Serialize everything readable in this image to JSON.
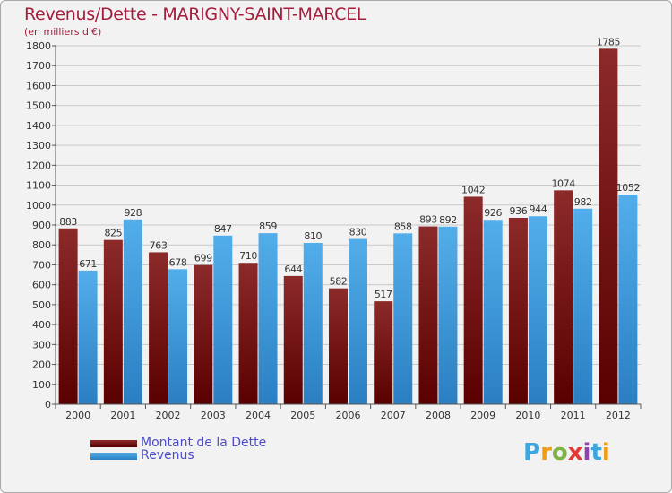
{
  "title": "Revenus/Dette - MARIGNY-SAINT-MARCEL",
  "subtitle": "(en milliers d'€)",
  "chart_data": {
    "type": "bar",
    "categories": [
      "2000",
      "2001",
      "2002",
      "2003",
      "2004",
      "2005",
      "2006",
      "2007",
      "2008",
      "2009",
      "2010",
      "2011",
      "2012"
    ],
    "series": [
      {
        "name": "Montant de la Dette",
        "values": [
          883,
          825,
          763,
          699,
          710,
          644,
          582,
          517,
          893,
          1042,
          936,
          1074,
          1785
        ],
        "color": "#7a1e1e"
      },
      {
        "name": "Revenus",
        "values": [
          671,
          928,
          678,
          847,
          859,
          810,
          830,
          858,
          892,
          926,
          944,
          982,
          1052
        ],
        "color": "#3d9be0"
      }
    ],
    "ylim": [
      0,
      1800
    ],
    "yticks": [
      0,
      100,
      200,
      300,
      400,
      500,
      600,
      700,
      800,
      900,
      1000,
      1100,
      1200,
      1300,
      1400,
      1500,
      1600,
      1700,
      1800
    ],
    "grid": true,
    "legend_position": "bottom-left"
  },
  "legend": {
    "debt_label": "Montant de la Dette",
    "revenue_label": "Revenus"
  },
  "logo": {
    "text": "Proxiti",
    "letters": [
      "P",
      "r",
      "o",
      "x",
      "i",
      "t",
      "i"
    ],
    "colors": [
      "#3ba6e0",
      "#f39c12",
      "#7cb342",
      "#e53935",
      "#8e44ad",
      "#3ba6e0",
      "#f39c12"
    ]
  }
}
